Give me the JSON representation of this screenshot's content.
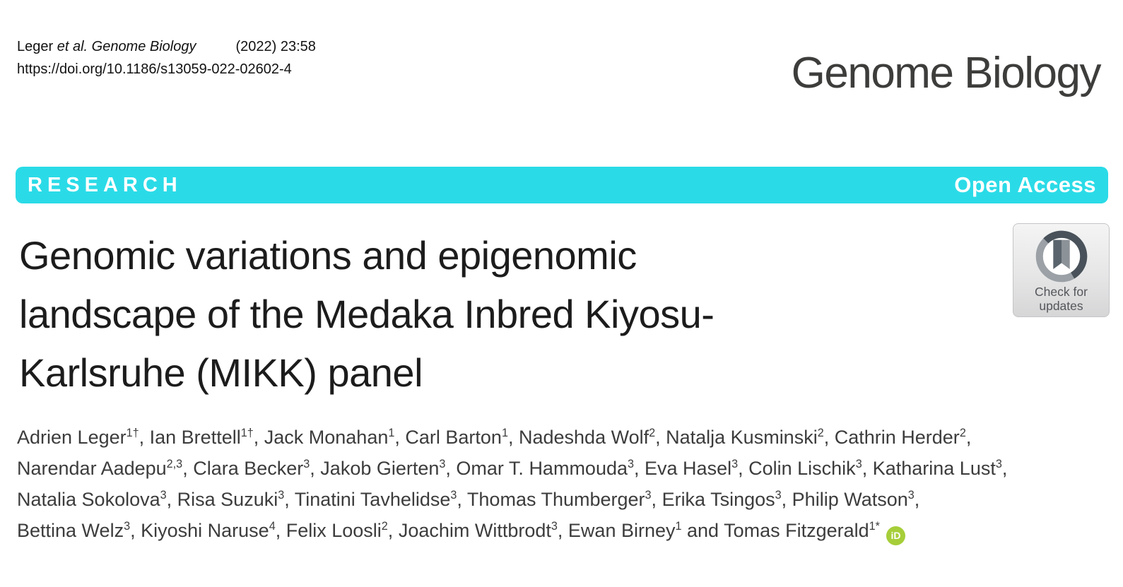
{
  "citation": {
    "authors_short": "Leger ",
    "journal": "et al. Genome Biology",
    "issue": "(2022) 23:58",
    "doi": "https://doi.org/10.1186/s13059-022-02602-4"
  },
  "logo": {
    "text": "Genome Biology"
  },
  "banner": {
    "research_label": "RESEARCH",
    "open_access_label": "Open Access"
  },
  "badge": {
    "label": "Check for updates"
  },
  "title": {
    "text": "Genomic variations and epigenomic\nlandscape of the Medaka Inbred Kiyosu-\nKarlsruhe (MIKK) panel"
  },
  "authors": {
    "and_word": "and",
    "orcid_label": "iD",
    "lines": [
      [
        {
          "name": "Adrien Leger",
          "sup": "1†"
        },
        {
          "name": "Ian Brettell",
          "sup": "1†"
        },
        {
          "name": "Jack Monahan",
          "sup": "1"
        },
        {
          "name": "Carl Barton",
          "sup": "1"
        },
        {
          "name": "Nadeshda Wolf",
          "sup": "2"
        },
        {
          "name": "Natalja Kusminski",
          "sup": "2"
        },
        {
          "name": "Cathrin Herder",
          "sup": "2"
        }
      ],
      [
        {
          "name": "Narendar Aadepu",
          "sup": "2,3"
        },
        {
          "name": "Clara Becker",
          "sup": "3"
        },
        {
          "name": "Jakob Gierten",
          "sup": "3"
        },
        {
          "name": "Omar T. Hammouda",
          "sup": "3"
        },
        {
          "name": "Eva Hasel",
          "sup": "3"
        },
        {
          "name": "Colin Lischik",
          "sup": "3"
        },
        {
          "name": "Katharina Lust",
          "sup": "3"
        }
      ],
      [
        {
          "name": "Natalia Sokolova",
          "sup": "3"
        },
        {
          "name": "Risa Suzuki",
          "sup": "3"
        },
        {
          "name": "Tinatini Tavhelidse",
          "sup": "3"
        },
        {
          "name": "Thomas Thumberger",
          "sup": "3"
        },
        {
          "name": "Erika Tsingos",
          "sup": "3"
        },
        {
          "name": "Philip Watson",
          "sup": "3"
        }
      ],
      [
        {
          "name": "Bettina Welz",
          "sup": "3"
        },
        {
          "name": "Kiyoshi Naruse",
          "sup": "4"
        },
        {
          "name": "Felix Loosli",
          "sup": "2"
        },
        {
          "name": "Joachim Wittbrodt",
          "sup": "3"
        },
        {
          "name": "Ewan Birney",
          "sup": "1"
        },
        {
          "name": "Tomas Fitzgerald",
          "sup": "1*"
        }
      ]
    ]
  },
  "colors": {
    "accent_cyan": "#2adbe7",
    "orcid_green": "#a6ce39",
    "badge_text": "#54565a",
    "logo_gray": "#3d3d3c"
  }
}
